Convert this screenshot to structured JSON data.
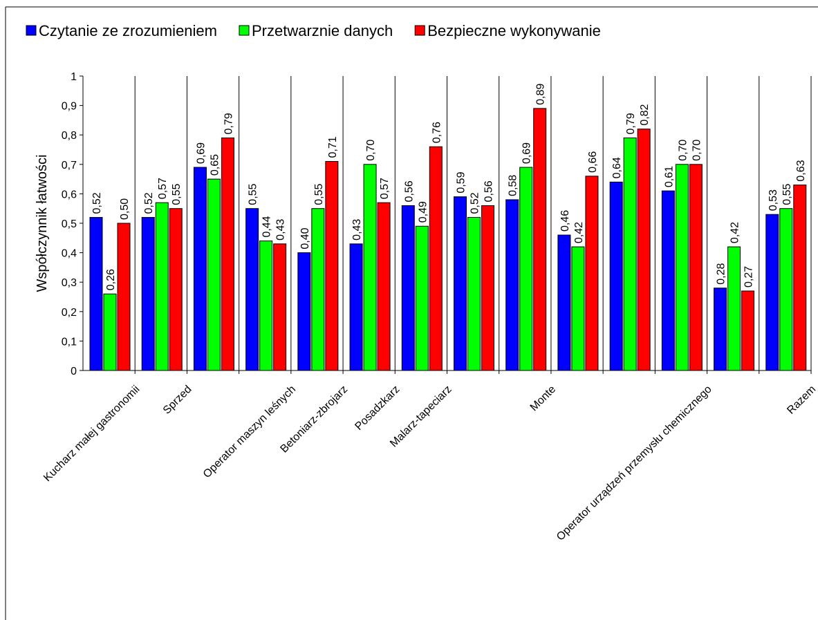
{
  "chart_data": {
    "type": "bar",
    "y_label": "Współczynnik łatwości",
    "categories": [
      "Kucharz małej gastronomii",
      "Sprzed",
      null,
      "Operator maszyn leśnych",
      "Betoniarz-zbrojarz",
      "Posadzkarz",
      "Malarz-tapeciarz",
      null,
      "Monte",
      null,
      null,
      "Operator urządzeń przemysłu chemicznego",
      null,
      "Razem"
    ],
    "series": [
      {
        "name": "Czytanie ze zrozumieniem",
        "color": "#0000ff",
        "values": [
          0.52,
          0.52,
          0.69,
          0.55,
          0.4,
          0.43,
          0.56,
          0.59,
          0.58,
          0.46,
          0.64,
          0.61,
          0.28,
          0.53
        ],
        "value_labels": [
          "0,52",
          "0,52",
          "0,69",
          "0,55",
          "0,40",
          "0,43",
          "0,56",
          "0,59",
          "0,58",
          "0,46",
          "0,64",
          "0,61",
          "0,28",
          "0,53"
        ]
      },
      {
        "name": "Przetwarznie danych",
        "color": "#00ff00",
        "values": [
          0.26,
          0.57,
          0.65,
          0.44,
          0.55,
          0.7,
          0.49,
          0.52,
          0.69,
          0.42,
          0.79,
          0.7,
          0.42,
          0.55
        ],
        "value_labels": [
          "0,26",
          "0,57",
          "0,65",
          "0,44",
          "0,55",
          "0,70",
          "0,49",
          "0,52",
          "0,69",
          "0,42",
          "0,79",
          "0,70",
          "0,42",
          "0,55"
        ]
      },
      {
        "name": "Bezpieczne wykonywanie",
        "color": "#ff0000",
        "values": [
          0.5,
          0.55,
          0.79,
          0.43,
          0.71,
          0.57,
          0.76,
          0.56,
          0.89,
          0.66,
          0.82,
          0.7,
          0.27,
          0.63
        ],
        "value_labels": [
          "0,50",
          "0,55",
          "0,79",
          "0,43",
          "0,71",
          "0,57",
          "0,76",
          "0,56",
          "0,89",
          "0,66",
          "0,82",
          "0,70",
          "0,27",
          "0,63"
        ]
      }
    ],
    "ylim": [
      0,
      1
    ],
    "yticks": [
      0,
      {
        "value": 0.1,
        "label": "0,1"
      },
      {
        "value": 0.2,
        "label": "0,2"
      },
      {
        "value": 0.3,
        "label": "0,3"
      },
      {
        "value": 0.4,
        "label": "0,4"
      },
      {
        "value": 0.5,
        "label": "0,5"
      },
      {
        "value": 0.6,
        "label": "0,6"
      },
      {
        "value": 0.7,
        "label": "0,7"
      },
      {
        "value": 0.8,
        "label": "0,8"
      },
      {
        "value": 0.9,
        "label": "0,9"
      },
      1
    ],
    "grid": false,
    "legend": "top"
  }
}
